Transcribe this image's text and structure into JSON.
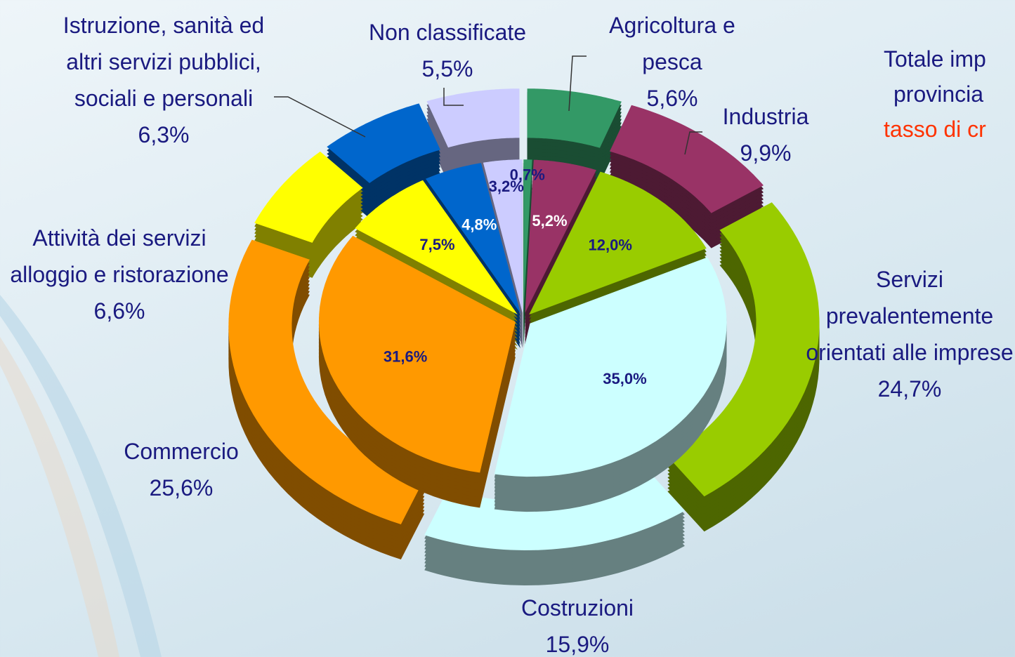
{
  "chart_data": {
    "type": "pie",
    "categories": [
      "Agricoltura e pesca",
      "Industria",
      "Servizi prevalentemente orientati alle imprese",
      "Costruzioni",
      "Commercio",
      "Attività dei servizi alloggio e ristorazione",
      "Istruzione, sanità ed altri servizi pubblici, sociali e personali",
      "Non classificate"
    ],
    "colors": [
      "#339966",
      "#993366",
      "#99cc00",
      "#ccffff",
      "#ff9900",
      "#ffff00",
      "#0066cc",
      "#ccccff"
    ],
    "series": [
      {
        "values": [
          5.6,
          9.9,
          24.7,
          15.9,
          25.6,
          6.6,
          6.3,
          5.5
        ],
        "value_labels": [
          "5,6%",
          "9,9%",
          "24,7%",
          "15,9%",
          "25,6%",
          "6,6%",
          "6,3%",
          "5,5%"
        ]
      },
      {
        "values": [
          0.7,
          5.2,
          12.0,
          35.0,
          31.6,
          7.5,
          4.8,
          3.2
        ],
        "value_labels": [
          "0,7%",
          "5,2%",
          "12,0%",
          "35,0%",
          "31,6%",
          "7,5%",
          "4,8%",
          "3,2%"
        ]
      }
    ],
    "annotations": [
      {
        "text": "Totale imp",
        "color": "#1a1a80"
      },
      {
        "text": "provincia",
        "color": "#1a1a80"
      },
      {
        "text": "tasso di cr",
        "color": "#ff3300"
      }
    ]
  }
}
